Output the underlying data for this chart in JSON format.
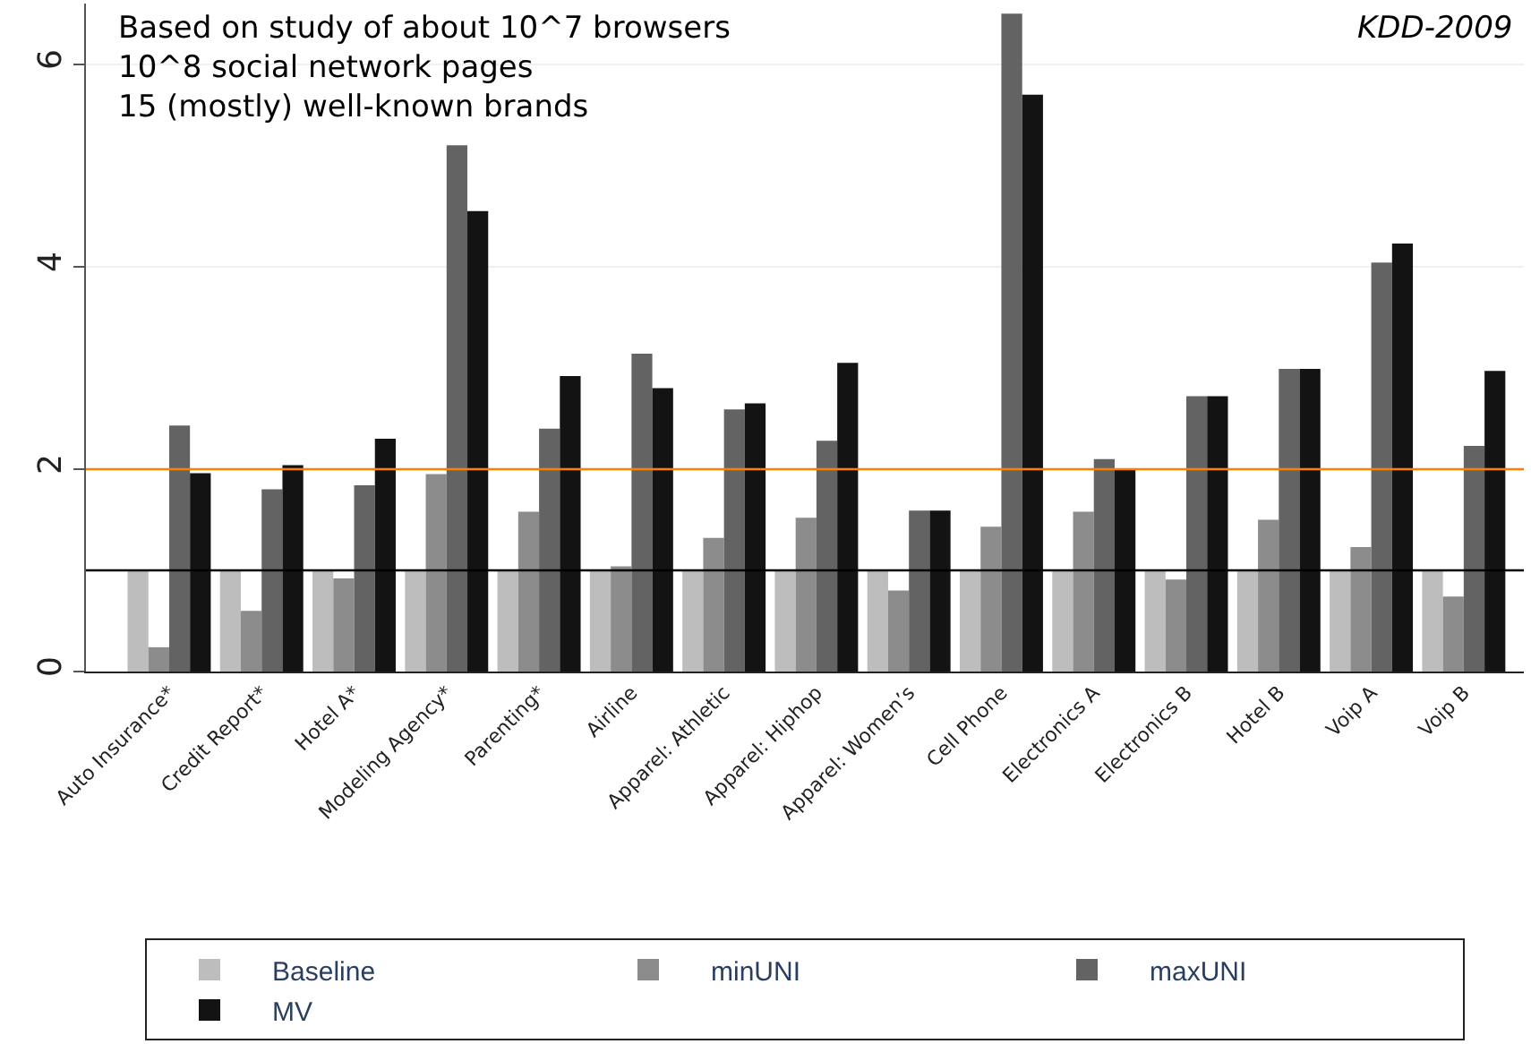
{
  "chart_data": {
    "type": "bar",
    "categories": [
      "Auto Insurance*",
      "Credit Report*",
      "Hotel A*",
      "Modeling Agency*",
      "Parenting*",
      "Airline",
      "Apparel: Athletic",
      "Apparel: Hiphop",
      "Apparel: Women’s",
      "Cell Phone",
      "Electronics A",
      "Electronics B",
      "Hotel B",
      "Voip A",
      "Voip B"
    ],
    "series": [
      {
        "name": "Baseline",
        "color": "#bdbdbd",
        "values": [
          1,
          1,
          1,
          1,
          1,
          1,
          1,
          1,
          1,
          1,
          1,
          1,
          1,
          1,
          1
        ]
      },
      {
        "name": "minUNI",
        "color": "#8c8c8c",
        "values": [
          0.24,
          0.6,
          0.92,
          1.95,
          1.58,
          1.04,
          1.32,
          1.52,
          0.8,
          1.43,
          1.58,
          0.91,
          1.5,
          1.23,
          0.74
        ]
      },
      {
        "name": "maxUNI",
        "color": "#636363",
        "values": [
          2.43,
          1.8,
          1.84,
          5.2,
          2.4,
          3.14,
          2.59,
          2.28,
          1.59,
          6.5,
          2.1,
          2.72,
          2.99,
          4.04,
          2.23
        ]
      },
      {
        "name": "MV",
        "color": "#131313",
        "values": [
          1.96,
          2.04,
          2.3,
          4.55,
          2.92,
          2.8,
          2.65,
          3.05,
          1.59,
          5.7,
          2.0,
          2.72,
          2.99,
          4.23,
          2.97
        ]
      }
    ],
    "ylim": [
      0,
      6.6
    ],
    "yticks": [
      0,
      2,
      4,
      6
    ],
    "grid": "y",
    "legend": "bottom",
    "ref_lines": [
      {
        "axis": "y",
        "value": 1,
        "color": "#000000"
      },
      {
        "axis": "y",
        "value": 2,
        "color": "#ff8000"
      }
    ],
    "annotations": [
      "Based on study of about 10^7 browsers\n10^8 social network pages\n15 (mostly) well-known brands",
      "KDD-2009"
    ]
  }
}
